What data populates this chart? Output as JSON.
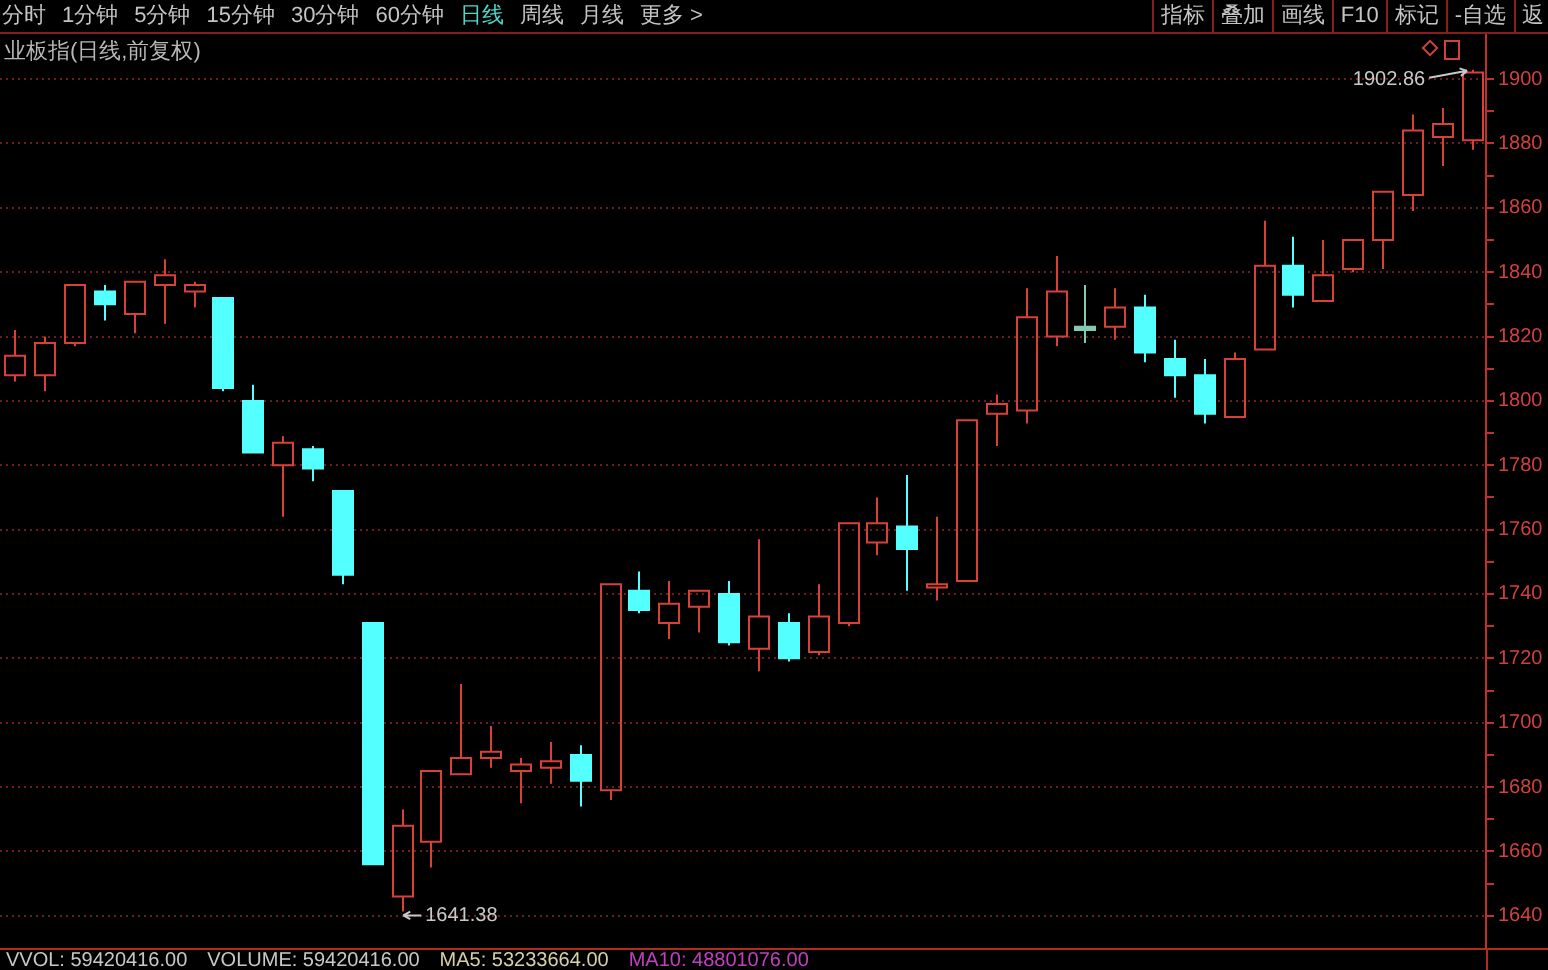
{
  "chart_data": {
    "type": "candlestick",
    "title": "业板指(日线,前复权)",
    "categories": [
      null,
      null,
      null,
      null,
      null,
      null,
      null,
      null,
      null,
      null,
      null,
      null,
      null,
      null,
      null,
      null,
      null,
      null,
      null,
      null,
      null,
      null,
      null,
      null,
      null,
      null,
      null,
      null,
      null,
      null,
      null,
      null,
      null,
      null,
      null,
      null,
      null,
      null,
      null,
      null,
      null,
      null,
      null,
      null,
      null,
      null,
      null,
      null,
      null,
      null
    ],
    "ohlc": [
      [
        1808,
        1822,
        1806,
        1814
      ],
      [
        1808,
        1820,
        1803,
        1818
      ],
      [
        1818,
        1836,
        1817,
        1836
      ],
      [
        1834,
        1836,
        1825,
        1830
      ],
      [
        1827,
        1837,
        1821,
        1837
      ],
      [
        1836,
        1844,
        1824,
        1839
      ],
      [
        1834,
        1837,
        1829,
        1836
      ],
      [
        1832,
        1832,
        1803,
        1804
      ],
      [
        1800,
        1805,
        1784,
        1784
      ],
      [
        1780,
        1789,
        1764,
        1787
      ],
      [
        1785,
        1786,
        1775,
        1779
      ],
      [
        1772,
        1772,
        1743,
        1746
      ],
      [
        1731,
        1731,
        1656,
        1656
      ],
      [
        1646,
        1673,
        1641.38,
        1668
      ],
      [
        1663,
        1685,
        1655,
        1685
      ],
      [
        1684,
        1712,
        1684,
        1689
      ],
      [
        1689,
        1699,
        1686,
        1691
      ],
      [
        1685,
        1689,
        1675,
        1687
      ],
      [
        1686,
        1694,
        1681,
        1688
      ],
      [
        1690,
        1693,
        1674,
        1682
      ],
      [
        1679,
        1743,
        1676,
        1743
      ],
      [
        1741,
        1747,
        1734,
        1735
      ],
      [
        1731,
        1744,
        1726,
        1737
      ],
      [
        1736,
        1741,
        1728,
        1741
      ],
      [
        1740,
        1744,
        1724,
        1725
      ],
      [
        1723,
        1757,
        1716,
        1733
      ],
      [
        1731,
        1734,
        1719,
        1720
      ],
      [
        1722,
        1743,
        1721,
        1733
      ],
      [
        1731,
        1762,
        1730,
        1762
      ],
      [
        1756,
        1770,
        1752,
        1762
      ],
      [
        1761,
        1777,
        1741,
        1754
      ],
      [
        1742,
        1764,
        1738,
        1743
      ],
      [
        1744,
        1794,
        1744,
        1794
      ],
      [
        1796,
        1802,
        1786,
        1799
      ],
      [
        1797,
        1835,
        1793,
        1826
      ],
      [
        1820,
        1845,
        1817,
        1834
      ],
      [
        1823,
        1836,
        1818,
        1822
      ],
      [
        1823,
        1835,
        1819,
        1829
      ],
      [
        1829,
        1833,
        1812,
        1815
      ],
      [
        1813,
        1819,
        1801,
        1808
      ],
      [
        1808,
        1813,
        1793,
        1796
      ],
      [
        1795,
        1815,
        1795,
        1813
      ],
      [
        1816,
        1856,
        1816,
        1842
      ],
      [
        1842,
        1851,
        1829,
        1833
      ],
      [
        1831,
        1850,
        1831,
        1839
      ],
      [
        1841,
        1850,
        1840,
        1850
      ],
      [
        1850,
        1865,
        1841,
        1865
      ],
      [
        1864,
        1889,
        1859,
        1884
      ],
      [
        1882,
        1891,
        1873,
        1886
      ],
      [
        1881,
        1902.86,
        1878,
        1902
      ]
    ],
    "colors": [
      "#d8403a",
      "#d8403a",
      "#d8403a",
      "#54ffff",
      "#d8403a",
      "#d8403a",
      "#d8403a",
      "#54ffff",
      "#54ffff",
      "#d8403a",
      "#54ffff",
      "#54ffff",
      "#54ffff",
      "#d8403a",
      "#d8403a",
      "#d8403a",
      "#d8403a",
      "#d8403a",
      "#d8403a",
      "#54ffff",
      "#d8403a",
      "#54ffff",
      "#d8403a",
      "#d8403a",
      "#54ffff",
      "#d8403a",
      "#54ffff",
      "#d8403a",
      "#d8403a",
      "#d8403a",
      "#54ffff",
      "#d8403a",
      "#d8403a",
      "#d8403a",
      "#d8403a",
      "#d8403a",
      "#86c8b4",
      "#d8403a",
      "#54ffff",
      "#54ffff",
      "#54ffff",
      "#d8403a",
      "#d8403a",
      "#54ffff",
      "#d8403a",
      "#d8403a",
      "#d8403a",
      "#d8403a",
      "#d8403a",
      "#d8403a"
    ],
    "ylim": [
      1630,
      1914
    ],
    "yticks": [
      1640,
      {
        "value": 1650,
        "label": null
      },
      1660,
      {
        "value": 1670,
        "label": null
      },
      1680,
      {
        "value": 1690,
        "label": null
      },
      1700,
      {
        "value": 1710,
        "label": null
      },
      1720,
      {
        "value": 1730,
        "label": null
      },
      1740,
      {
        "value": 1750,
        "label": null
      },
      1760,
      {
        "value": 1770,
        "label": null
      },
      1780,
      {
        "value": 1790,
        "label": null
      },
      1800,
      {
        "value": 1810,
        "label": null
      },
      1820,
      {
        "value": 1830,
        "label": null
      },
      1840,
      {
        "value": 1850,
        "label": null
      },
      1860,
      {
        "value": 1870,
        "label": null
      },
      1880,
      {
        "value": 1890,
        "label": null
      },
      1900
    ],
    "grid": "y",
    "tick_labels": "y",
    "annotations": [
      "分时",
      "1分钟",
      "5分钟",
      "15分钟",
      "30分钟",
      "60分钟",
      "日线",
      "周线",
      "月线",
      "更多 >",
      "指标",
      "叠加",
      "画线",
      "F10",
      "标记",
      "-自选",
      "返",
      "1902.86",
      "1641.38",
      "VVOL: 59420416.00",
      "VOLUME: 59420416.00",
      "MA5: 53233664.00",
      "MA10: 48801076.00"
    ]
  }
}
